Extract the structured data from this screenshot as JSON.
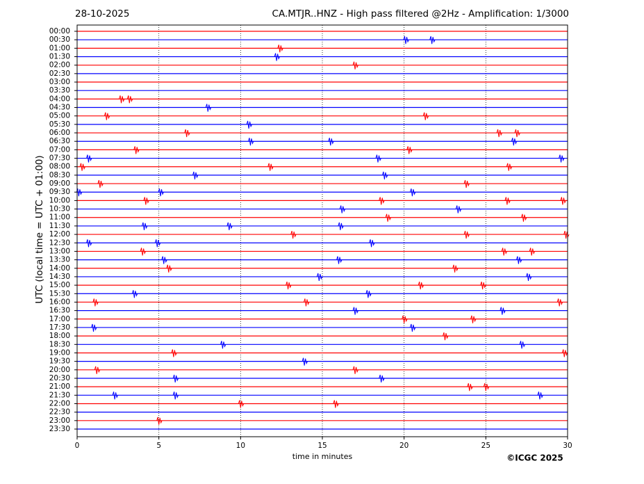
{
  "chart_data": {
    "type": "helicorder",
    "date": "28-10-2025",
    "title": "CA.MTJR..HNZ - High pass filtered @2Hz - Amplification: 1/3000",
    "ylabel": "UTC (local time = UTC + 01:00)",
    "xlabel": "time in minutes",
    "copyright": "©ICGC 2025",
    "xlim": [
      0,
      30
    ],
    "xticks": [
      0,
      5,
      10,
      15,
      20,
      25,
      30
    ],
    "grid": true,
    "colors": [
      "#ff0000",
      "#0000ff"
    ],
    "categories": [
      "00:00",
      "00:30",
      "01:00",
      "01:30",
      "02:00",
      "02:30",
      "03:00",
      "03:30",
      "04:00",
      "04:30",
      "05:00",
      "05:30",
      "06:00",
      "06:30",
      "07:00",
      "07:30",
      "08:00",
      "08:30",
      "09:00",
      "09:30",
      "10:00",
      "10:30",
      "11:00",
      "11:30",
      "12:00",
      "12:30",
      "13:00",
      "13:30",
      "14:00",
      "14:30",
      "15:00",
      "15:30",
      "16:00",
      "16:30",
      "17:00",
      "17:30",
      "18:00",
      "18:30",
      "19:00",
      "19:30",
      "20:00",
      "20:30",
      "21:00",
      "21:30",
      "22:00",
      "22:30",
      "23:00",
      "23:30"
    ],
    "events": [
      [],
      [
        20.1,
        21.7
      ],
      [
        12.4
      ],
      [
        12.2
      ],
      [
        17
      ],
      [],
      [],
      [],
      [
        2.7,
        3.2
      ],
      [
        8.0
      ],
      [
        1.8,
        21.3
      ],
      [
        10.5
      ],
      [
        6.7,
        25.8,
        26.9
      ],
      [
        10.6,
        15.5,
        26.7
      ],
      [
        3.6,
        20.3
      ],
      [
        0.7,
        18.4,
        29.6
      ],
      [
        0.3,
        11.8,
        26.4
      ],
      [
        7.2,
        18.8
      ],
      [
        1.4,
        23.8
      ],
      [
        0.1,
        5.1,
        20.5
      ],
      [
        4.2,
        18.6,
        26.3,
        29.7
      ],
      [
        16.2,
        23.3
      ],
      [
        19.0,
        27.3
      ],
      [
        4.1,
        9.3,
        16.1
      ],
      [
        13.2,
        23.8,
        29.9
      ],
      [
        0.7,
        4.9,
        18.0
      ],
      [
        4.0,
        26.1,
        27.8
      ],
      [
        5.3,
        16.0,
        27.0
      ],
      [
        5.6,
        23.1
      ],
      [
        14.8,
        27.6
      ],
      [
        12.9,
        21.0,
        24.8
      ],
      [
        3.5,
        17.8
      ],
      [
        1.1,
        14.0,
        29.5
      ],
      [
        17.0,
        26.0
      ],
      [
        20.0,
        24.2
      ],
      [
        1.0,
        20.5
      ],
      [
        22.5
      ],
      [
        8.9,
        27.2
      ],
      [
        5.9,
        29.8
      ],
      [
        13.9
      ],
      [
        1.2,
        17.0
      ],
      [
        6.0,
        18.6
      ],
      [
        24.0,
        25.0
      ],
      [
        2.3,
        6.0,
        28.3
      ],
      [
        10.0,
        15.8
      ],
      [],
      [
        5.0
      ],
      []
    ]
  }
}
